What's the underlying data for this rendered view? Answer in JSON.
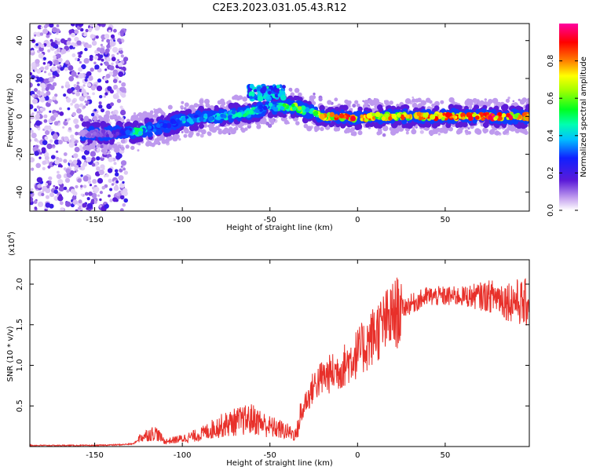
{
  "title": "C2E3.2023.031.05.43.R12",
  "chart_data": [
    {
      "type": "heatmap",
      "title": "C2E3.2023.031.05.43.R12",
      "xlabel": "Height of straight line (km)",
      "ylabel": "Frequency (Hz)",
      "xlim": [
        -187,
        98
      ],
      "ylim": [
        -50,
        49
      ],
      "xticks": [
        -150,
        -100,
        -50,
        0,
        50
      ],
      "yticks": [
        -40,
        -20,
        0,
        20,
        40
      ],
      "ridge": {
        "description": "Doppler frequency ridge (peak spectral amplitude) vs height",
        "height_km": [
          -155,
          -140,
          -130,
          -125,
          -120,
          -110,
          -100,
          -90,
          -80,
          -70,
          -60,
          -55,
          -50,
          -45,
          -40,
          -35,
          -30,
          -25,
          -20,
          -10,
          0,
          10,
          20,
          30,
          40,
          50,
          60,
          70,
          80,
          90,
          98
        ],
        "frequency_hz": [
          -9,
          -9,
          -8,
          -8,
          -7,
          -5,
          -2,
          -1,
          0,
          1,
          2,
          4,
          5,
          5,
          5,
          5,
          3,
          2,
          0,
          0,
          -1,
          0,
          0,
          0,
          0,
          0,
          0,
          0,
          0,
          0,
          0
        ],
        "amplitude": [
          0.1,
          0.15,
          0.3,
          0.55,
          0.35,
          0.3,
          0.4,
          0.35,
          0.4,
          0.45,
          0.45,
          0.35,
          0.4,
          0.45,
          0.6,
          0.65,
          0.5,
          0.55,
          0.7,
          0.8,
          0.85,
          0.75,
          0.75,
          0.75,
          0.8,
          0.8,
          0.8,
          0.85,
          0.9,
          0.85,
          0.8
        ]
      },
      "colorbar": {
        "label": "Normalized spectral amplitude",
        "ticks": [
          "0.0",
          "0.2",
          "0.4",
          "0.6",
          "0.8"
        ],
        "range": [
          0,
          1
        ]
      }
    },
    {
      "type": "line",
      "xlabel": "Height of straight line (km)",
      "ylabel": "SNR (10 * v/v)",
      "exponent_label": "(x10",
      "exponent_power": "4",
      "exponent_close": ")",
      "xlim": [
        -187,
        98
      ],
      "ylim": [
        0,
        2.3
      ],
      "xticks": [
        -150,
        -100,
        -50,
        0,
        50
      ],
      "yticks": [
        0.5,
        1.0,
        1.5,
        2.0
      ],
      "ytick_labels": [
        "0.5",
        "1.0",
        "1.5",
        "2.0"
      ],
      "series": [
        {
          "name": "SNR",
          "color": "#e8302a",
          "x": [
            -187,
            -150,
            -135,
            -128,
            -125,
            -120,
            -115,
            -110,
            -100,
            -90,
            -80,
            -70,
            -60,
            -50,
            -45,
            -40,
            -35,
            -32,
            -30,
            -28,
            -25,
            -20,
            -15,
            -10,
            -5,
            0,
            5,
            10,
            15,
            20,
            25,
            30,
            35,
            40,
            50,
            60,
            70,
            80,
            85,
            90,
            95,
            98
          ],
          "y": [
            0.01,
            0.01,
            0.02,
            0.03,
            0.08,
            0.12,
            0.14,
            0.05,
            0.08,
            0.12,
            0.2,
            0.25,
            0.28,
            0.2,
            0.18,
            0.15,
            0.12,
            0.35,
            0.55,
            0.6,
            0.75,
            0.85,
            0.9,
            0.95,
            1.05,
            1.15,
            1.25,
            1.4,
            1.5,
            1.6,
            1.7,
            1.75,
            1.8,
            1.85,
            1.85,
            1.85,
            1.85,
            1.85,
            1.8,
            1.8,
            1.75,
            1.8
          ]
        }
      ]
    }
  ]
}
